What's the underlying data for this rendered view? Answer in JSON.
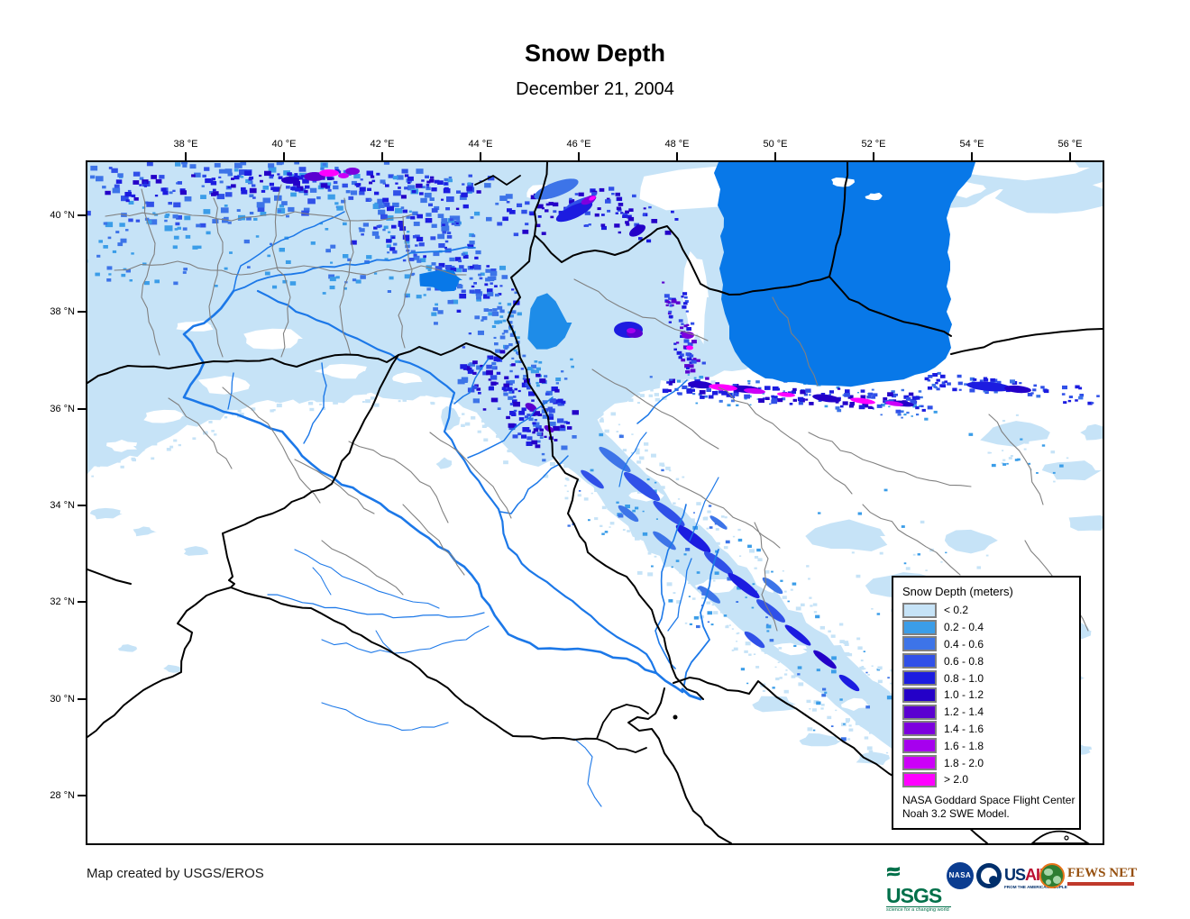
{
  "header": {
    "title": "Snow Depth",
    "subtitle": "December 21, 2004"
  },
  "axes": {
    "top_labels": [
      "38 °E",
      "40 °E",
      "42 °E",
      "44 °E",
      "46 °E",
      "48 °E",
      "50 °E",
      "52 °E",
      "54 °E",
      "56 °E"
    ],
    "left_labels": [
      "40 °N",
      "38 °N",
      "36 °N",
      "34 °N",
      "32 °N",
      "30 °N",
      "28 °N"
    ]
  },
  "legend": {
    "title": "Snow Depth (meters)",
    "items": [
      {
        "label": "< 0.2",
        "color": "#C6E3F7"
      },
      {
        "label": "0.2 - 0.4",
        "color": "#3B9DE8"
      },
      {
        "label": "0.4 - 0.6",
        "color": "#3D74E8"
      },
      {
        "label": "0.6 - 0.8",
        "color": "#3050E8"
      },
      {
        "label": "0.8 - 1.0",
        "color": "#1C1CE0"
      },
      {
        "label": "1.0 - 1.2",
        "color": "#2400C8"
      },
      {
        "label": "1.2 - 1.4",
        "color": "#5A00D0"
      },
      {
        "label": "1.4 - 1.6",
        "color": "#7D00DE"
      },
      {
        "label": "1.6 - 1.8",
        "color": "#A600EE"
      },
      {
        "label": "1.8 - 2.0",
        "color": "#CC00F8"
      },
      {
        "label": "> 2.0",
        "color": "#FF00FF"
      }
    ],
    "note_line1": "NASA Goddard Space Flight Center",
    "note_line2": "Noah 3.2 SWE Model."
  },
  "footer": {
    "credit": "Map created by USGS/EROS"
  },
  "logos": {
    "usgs": {
      "name": "USGS",
      "tagline": "science for a changing world"
    },
    "nasa": {
      "name": "NASA"
    },
    "usaid": {
      "name_us": "US",
      "name_aid": "AID",
      "tagline": "FROM THE AMERICAN PEOPLE"
    },
    "fewsnet": {
      "name": "FEWS NET"
    }
  },
  "map": {
    "palette": {
      "land": "#FFFFFF",
      "sea": "#0878E8",
      "lake": "#1E8CE8",
      "river": "#1C78E8",
      "country_border": "#000000",
      "admin_border": "#808080"
    }
  }
}
